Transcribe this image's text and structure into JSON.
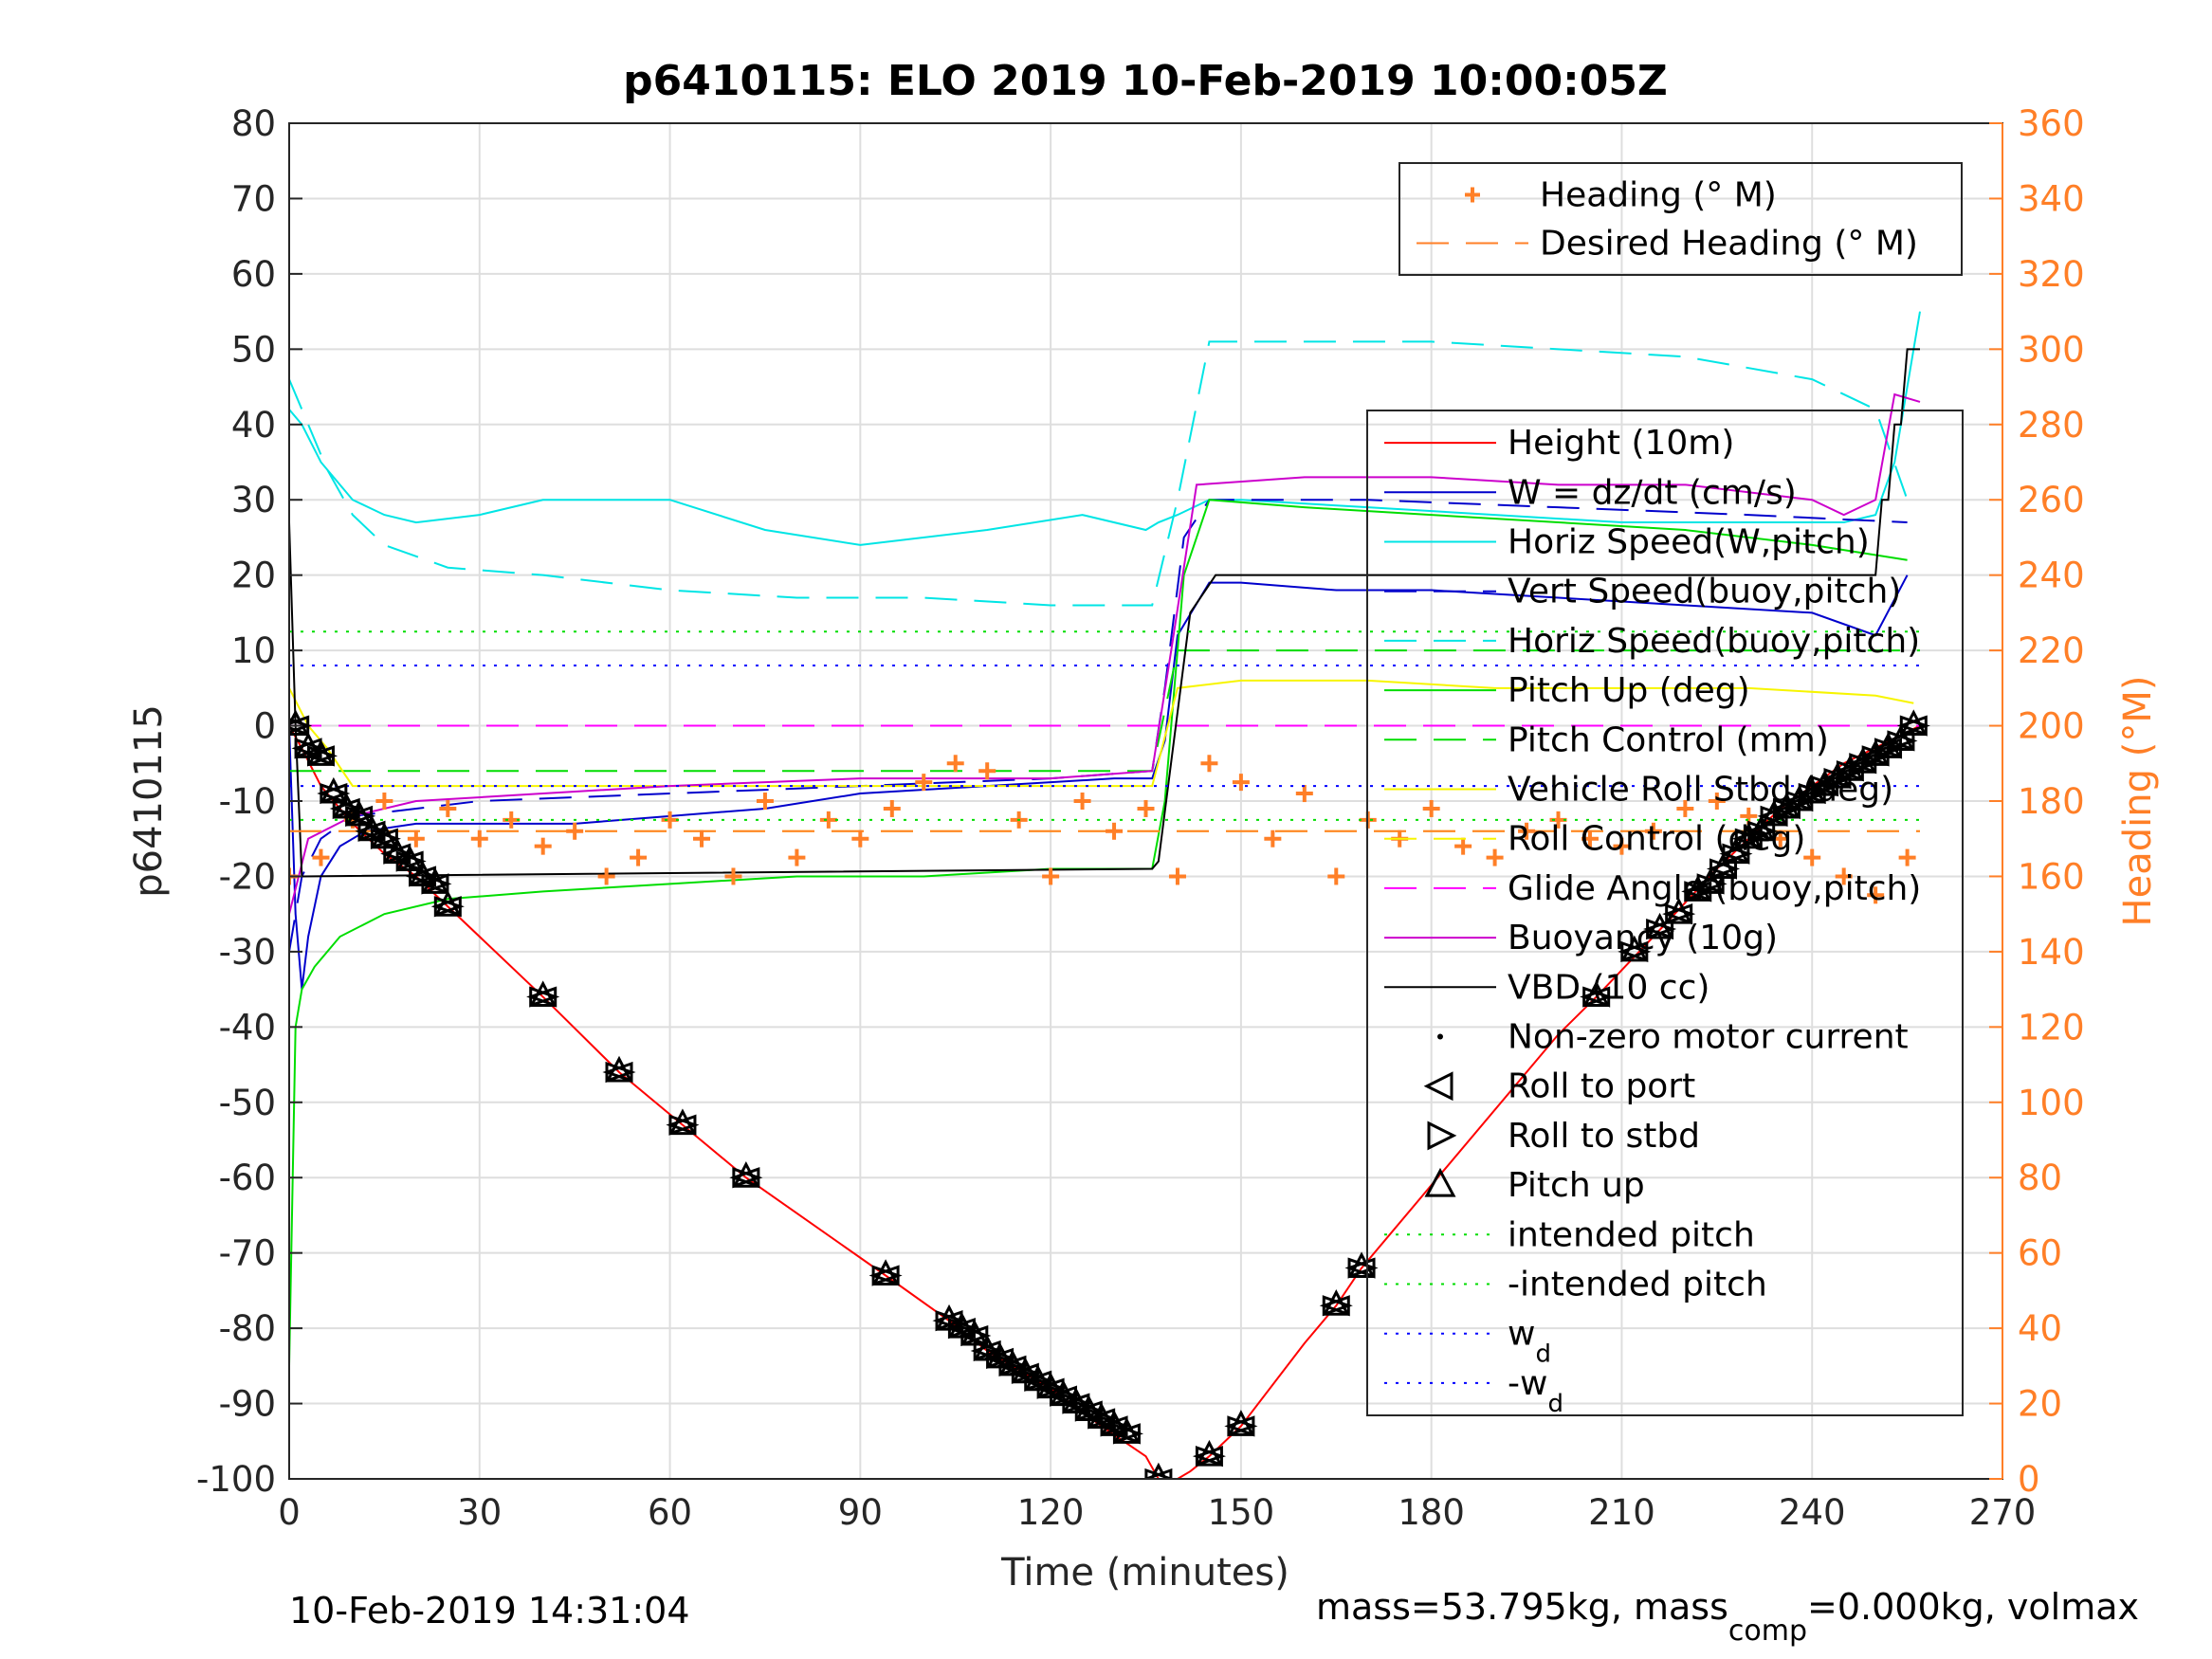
{
  "chart_data": {
    "type": "line",
    "title": "p6410115: ELO 2019 10-Feb-2019 10:00:05Z",
    "xlabel": "Time (minutes)",
    "ylabel": "p6410115",
    "y2label": "Heading (°M)",
    "xlim": [
      0,
      270
    ],
    "ylim": [
      -100,
      80
    ],
    "y2lim": [
      0,
      360
    ],
    "xticks": [
      "0",
      "30",
      "60",
      "90",
      "120",
      "150",
      "180",
      "210",
      "240",
      "270"
    ],
    "yticks": [
      "80",
      "70",
      "60",
      "50",
      "40",
      "30",
      "20",
      "10",
      "0",
      "-10",
      "-20",
      "-30",
      "-40",
      "-50",
      "-60",
      "-70",
      "-80",
      "-90",
      "-100"
    ],
    "y2ticks": [
      "360",
      "340",
      "320",
      "300",
      "280",
      "260",
      "240",
      "220",
      "200",
      "180",
      "160",
      "140",
      "120",
      "100",
      "80",
      "60",
      "40",
      "20",
      "0"
    ],
    "grid": true,
    "colors": {
      "height": "#ff0000",
      "w": "#0000cc",
      "horiz_w": "#00e5e5",
      "vert_buoy": "#0000cc",
      "horiz_buoy": "#00e5e5",
      "pitch_up": "#00dd00",
      "pitch_control": "#00dd00",
      "roll_stbd": "#f7f500",
      "roll_control": "#f7f500",
      "glide": "#ff00ff",
      "buoyancy": "#cc00cc",
      "vbd": "#000000",
      "heading": "#ff7f27",
      "wd": "#0000ff"
    },
    "legend_top": [
      {
        "label": "Heading (° M)",
        "color": "#ff7f27",
        "marker": "+"
      },
      {
        "label": "Desired Heading (° M)",
        "color": "#ff7f27",
        "style": "dashed"
      }
    ],
    "legend_main": [
      {
        "label": "Height (10m)",
        "color": "#ff0000",
        "style": "solid"
      },
      {
        "label": "W = dz/dt (cm/s)",
        "color": "#0000cc",
        "style": "solid"
      },
      {
        "label": "Horiz Speed(W,pitch)",
        "color": "#00e5e5",
        "style": "solid"
      },
      {
        "label": "Vert Speed(buoy,pitch)",
        "color": "#0000cc",
        "style": "dashed"
      },
      {
        "label": "Horiz Speed(buoy,pitch)",
        "color": "#00e5e5",
        "style": "dashed"
      },
      {
        "label": "Pitch Up (deg)",
        "color": "#00dd00",
        "style": "solid"
      },
      {
        "label": "Pitch Control (mm)",
        "color": "#00dd00",
        "style": "dashed"
      },
      {
        "label": "Vehicle Roll Stbd (deg)",
        "color": "#f7f500",
        "style": "solid"
      },
      {
        "label": "Roll Control (deg)",
        "color": "#f7f500",
        "style": "dashed"
      },
      {
        "label": "Glide Angle (buoy,pitch)",
        "color": "#ff00ff",
        "style": "dashed"
      },
      {
        "label": "Buoyancy (10g)",
        "color": "#cc00cc",
        "style": "solid"
      },
      {
        "label": "VBD (10 cc)",
        "color": "#000000",
        "style": "solid"
      },
      {
        "label": "Non-zero motor current",
        "color": "#000000",
        "marker": "dot"
      },
      {
        "label": "Roll to port",
        "color": "#000000",
        "marker": "tri-left"
      },
      {
        "label": "Roll to stbd",
        "color": "#000000",
        "marker": "tri-right"
      },
      {
        "label": "Pitch up",
        "color": "#000000",
        "marker": "tri-up"
      },
      {
        "label": "intended pitch",
        "color": "#00dd00",
        "style": "dotted"
      },
      {
        "label": "-intended pitch",
        "color": "#00dd00",
        "style": "dotted"
      },
      {
        "label": "w",
        "sub": "d",
        "color": "#0000ff",
        "style": "dotted"
      },
      {
        "label": "-w",
        "sub": "d",
        "color": "#0000ff",
        "style": "dotted"
      }
    ],
    "series": [
      {
        "name": "Height (10m)",
        "x": [
          0,
          2,
          5,
          10,
          15,
          20,
          25,
          40,
          52,
          62,
          72,
          94,
          104,
          110,
          120,
          128,
          135,
          137,
          140,
          142,
          145,
          150,
          160,
          165,
          169,
          180,
          200,
          206,
          215,
          225,
          235,
          245,
          257
        ],
        "y": [
          0,
          -3,
          -8,
          -13,
          -17,
          -20,
          -24,
          -36,
          -46,
          -53,
          -60,
          -73,
          -79,
          -83,
          -88,
          -93,
          -97,
          -100,
          -100,
          -99,
          -97,
          -93,
          -82,
          -77,
          -72,
          -61,
          -41,
          -36,
          -28,
          -19,
          -11,
          -5,
          0
        ]
      },
      {
        "name": "W = dz/dt (cm/s)",
        "x": [
          0,
          1,
          2,
          3,
          5,
          8,
          12,
          20,
          30,
          45,
          60,
          75,
          90,
          110,
          130,
          136,
          138,
          140,
          145,
          150,
          165,
          180,
          200,
          220,
          240,
          250,
          255
        ],
        "y": [
          0,
          -25,
          -35,
          -28,
          -20,
          -16,
          -14,
          -13,
          -13,
          -13,
          -12,
          -11,
          -9,
          -8,
          -7,
          -7,
          -2,
          12,
          19,
          19,
          18,
          18,
          17,
          16,
          15,
          12,
          20
        ]
      },
      {
        "name": "Horiz Speed(W,pitch)",
        "x": [
          0,
          2,
          5,
          10,
          15,
          20,
          30,
          40,
          60,
          75,
          90,
          110,
          125,
          135,
          137,
          140,
          145,
          150,
          170,
          190,
          210,
          230,
          245,
          250,
          253,
          255,
          257
        ],
        "y": [
          42,
          40,
          35,
          30,
          28,
          27,
          28,
          30,
          30,
          26,
          24,
          26,
          28,
          26,
          27,
          28,
          30,
          30,
          29,
          28,
          27,
          27,
          27,
          28,
          35,
          45,
          55
        ]
      },
      {
        "name": "Vert Speed(buoy,pitch)",
        "x": [
          0,
          2,
          5,
          10,
          30,
          60,
          90,
          120,
          136,
          138,
          141,
          145,
          170,
          200,
          230,
          255
        ],
        "y": [
          -30,
          -20,
          -15,
          -12,
          -10,
          -9,
          -8,
          -7,
          -6,
          5,
          25,
          30,
          30,
          29,
          28,
          27
        ]
      },
      {
        "name": "Horiz Speed(buoy,pitch)",
        "x": [
          0,
          3,
          6,
          10,
          15,
          25,
          40,
          60,
          80,
          100,
          120,
          136,
          140,
          145,
          160,
          180,
          200,
          220,
          240,
          250,
          255
        ],
        "y": [
          46,
          40,
          34,
          28,
          24,
          21,
          20,
          18,
          17,
          17,
          16,
          16,
          30,
          51,
          51,
          51,
          50,
          49,
          46,
          42,
          30
        ]
      },
      {
        "name": "Pitch Up (deg)",
        "x": [
          0,
          1,
          2,
          4,
          8,
          15,
          25,
          40,
          60,
          80,
          100,
          120,
          136,
          138,
          141,
          145,
          160,
          180,
          200,
          220,
          240,
          255
        ],
        "y": [
          -85,
          -40,
          -35,
          -32,
          -28,
          -25,
          -23,
          -22,
          -21,
          -20,
          -20,
          -19,
          -19,
          -10,
          20,
          30,
          29,
          28,
          27,
          26,
          24,
          22
        ]
      },
      {
        "name": "Pitch Control (mm)",
        "x": [
          0,
          10,
          136,
          140,
          257
        ],
        "y": [
          -6,
          -6,
          -6,
          10,
          10
        ]
      },
      {
        "name": "Vehicle Roll Stbd (deg)",
        "x": [
          0,
          3,
          6,
          10,
          30,
          60,
          90,
          120,
          136,
          140,
          150,
          170,
          190,
          210,
          230,
          250,
          256
        ],
        "y": [
          5,
          0,
          -3,
          -8,
          -8,
          -8,
          -8,
          -8,
          -8,
          5,
          6,
          6,
          5,
          5,
          5,
          4,
          3
        ]
      },
      {
        "name": "Roll Control (deg)",
        "x": [
          0,
          257
        ],
        "y": [
          -14,
          -14
        ]
      },
      {
        "name": "Glide Angle (buoy,pitch)",
        "x": [
          0,
          136,
          140,
          257
        ],
        "y": [
          0,
          0,
          0,
          0
        ]
      },
      {
        "name": "Buoyancy (10g)",
        "x": [
          0,
          3,
          10,
          20,
          40,
          60,
          90,
          120,
          136,
          139,
          143,
          160,
          180,
          200,
          220,
          240,
          245,
          250,
          253,
          257
        ],
        "y": [
          -25,
          -15,
          -12,
          -10,
          -9,
          -8,
          -7,
          -7,
          -6,
          10,
          32,
          33,
          33,
          32,
          32,
          30,
          28,
          30,
          44,
          43
        ]
      },
      {
        "name": "VBD (10 cc)",
        "x": [
          0,
          1,
          2,
          136,
          137,
          142,
          146,
          170,
          171,
          250,
          251,
          252,
          253,
          254,
          255,
          257
        ],
        "y": [
          27,
          0,
          -20,
          -19,
          -18,
          15,
          20,
          20,
          20,
          20,
          30,
          30,
          40,
          40,
          50,
          50
        ]
      },
      {
        "name": "Heading (° M)",
        "x": [
          0,
          5,
          10,
          15,
          20,
          25,
          30,
          35,
          40,
          45,
          50,
          55,
          60,
          65,
          70,
          75,
          80,
          85,
          90,
          95,
          100,
          105,
          110,
          115,
          120,
          125,
          130,
          135,
          140,
          145,
          150,
          155,
          160,
          165,
          170,
          175,
          180,
          185,
          190,
          195,
          200,
          205,
          210,
          215,
          220,
          225,
          230,
          235,
          240,
          245,
          250,
          255
        ],
        "y2": [
          160,
          165,
          175,
          180,
          170,
          178,
          170,
          175,
          168,
          172,
          160,
          165,
          175,
          170,
          160,
          180,
          165,
          175,
          170,
          178,
          185,
          190,
          188,
          175,
          160,
          180,
          172,
          178,
          160,
          190,
          185,
          170,
          182,
          160,
          175,
          170,
          178,
          168,
          165,
          172,
          175,
          170,
          168,
          172,
          178,
          180,
          176,
          170,
          165,
          160,
          155,
          165
        ]
      },
      {
        "name": "Desired Heading (° M)",
        "x": [
          0,
          257
        ],
        "y2": [
          172,
          172
        ]
      },
      {
        "name": "intended pitch",
        "x": [
          0,
          257
        ],
        "y": [
          12.5,
          12.5
        ]
      },
      {
        "name": "-intended pitch",
        "x": [
          0,
          257
        ],
        "y": [
          -12.5,
          -12.5
        ]
      },
      {
        "name": "w_d",
        "x": [
          0,
          257
        ],
        "y": [
          8,
          8
        ]
      },
      {
        "name": "-w_d",
        "x": [
          0,
          257
        ],
        "y": [
          -8,
          -8
        ]
      }
    ],
    "markers": {
      "x": [
        1,
        3,
        5,
        7,
        9,
        11,
        13,
        15,
        17,
        19,
        21,
        23,
        25,
        40,
        52,
        62,
        72,
        94,
        104,
        106,
        108,
        110,
        112,
        114,
        116,
        118,
        120,
        122,
        124,
        126,
        128,
        130,
        132,
        137,
        145,
        150,
        165,
        169,
        206,
        212,
        216,
        219,
        222,
        224,
        226,
        228,
        230,
        232,
        234,
        236,
        238,
        240,
        242,
        244,
        246,
        248,
        250,
        252,
        254,
        256
      ],
      "y": [
        0,
        -3,
        -4,
        -9,
        -11,
        -12,
        -14,
        -15,
        -17,
        -18,
        -20,
        -21,
        -24,
        -36,
        -46,
        -53,
        -60,
        -73,
        -79,
        -80,
        -81,
        -83,
        -84,
        -85,
        -86,
        -87,
        -88,
        -89,
        -90,
        -91,
        -92,
        -93,
        -94,
        -100,
        -97,
        -93,
        -77,
        -72,
        -36,
        -30,
        -27,
        -25,
        -22,
        -21,
        -19,
        -17,
        -15,
        -14,
        -12,
        -11,
        -10,
        -9,
        -8,
        -7,
        -6,
        -5,
        -4,
        -3,
        -2,
        0
      ]
    }
  },
  "footer": {
    "date": "10-Feb-2019 14:31:04",
    "mass_prefix": "mass=53.795kg, mass",
    "mass_sub": "comp",
    "mass_suffix": "=0.000kg, volmax"
  }
}
